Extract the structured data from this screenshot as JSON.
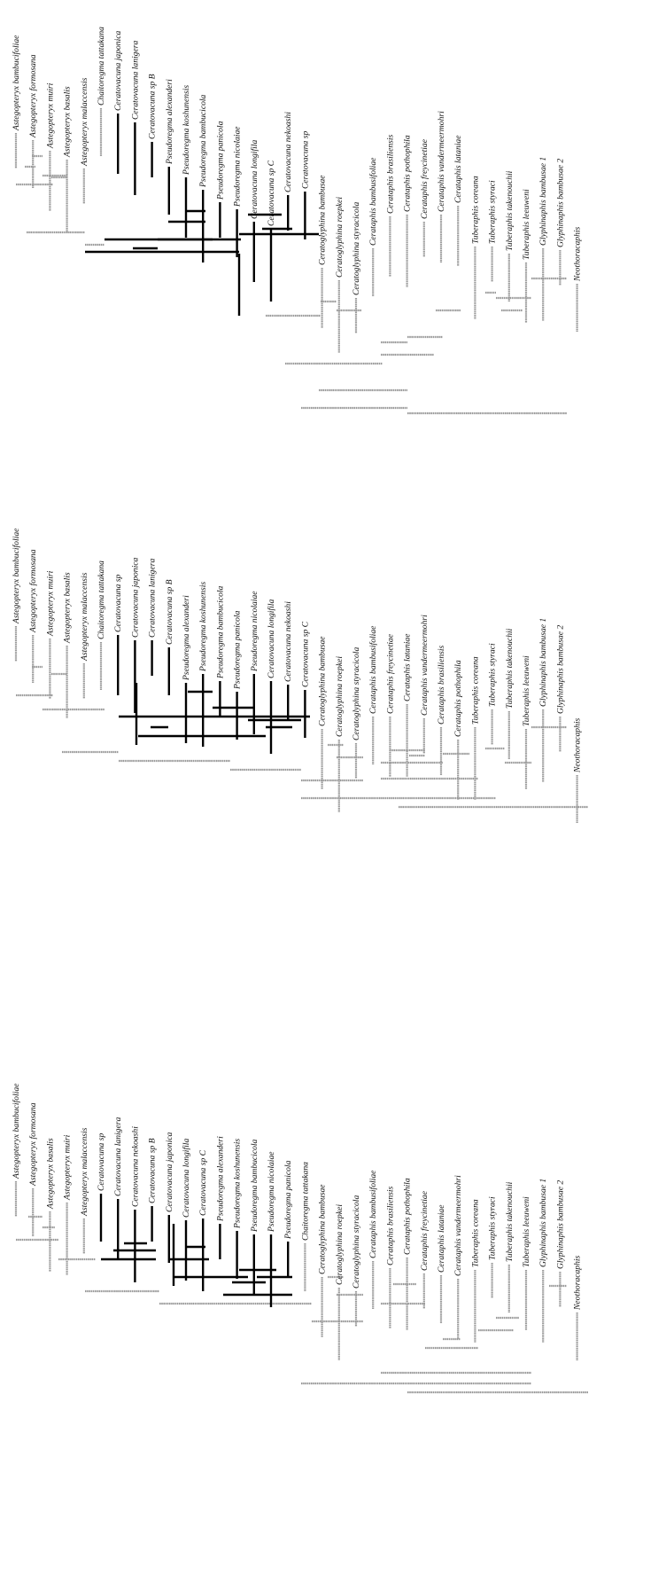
{
  "colors": {
    "background": "#ffffff",
    "outgroup_branch": "#9a9a9a",
    "cerataphidini_branch": "#000000",
    "label": "#111111"
  },
  "trees": [
    {
      "name": "tree-top",
      "taxa": [
        "Astegopteryx bambucifoliae",
        "Astegopteryx formosana",
        "Astegopteryx muiri",
        "Astegopteryx basalis",
        "Astegopteryx malaccensis",
        "Chaitoregma tattakana",
        "Ceratovacuna japonica",
        "Ceratovacuna lanigera",
        "Ceratovacuna sp B",
        "Pseudoregma alexanderi",
        "Pseudoregma koshunensis",
        "Pseudoregma bambucicola",
        "Pseudoregma panicola",
        "Pseudoregma nicolaiae",
        "Ceratovacuna longifila",
        "Ceratovacuna sp C",
        "Ceratovacuna nekoashi",
        "Ceratovacuna sp",
        "Ceratoglyphina bambusae",
        "Ceratoglyphina roepkei",
        "Ceratoglyphina styracicola",
        "Cerataphis bambusifoliae",
        "Cerataphis brasiliensis",
        "Cerataphis pothophila",
        "Cerataphis freycinetiae",
        "Cerataphis vandermeermohri",
        "Cerataphis lataniae",
        "Tuberaphis coreana",
        "Tuberaphis styraci",
        "Tuberaphis takenouchii",
        "Tuberaphis leeuweni",
        "Glyphinaphis bambusae 1",
        "Glyphinaphis bambusae 2",
        "Neothoracaphis"
      ]
    },
    {
      "name": "tree-middle",
      "taxa": [
        "Astegopteryx bambucifoliae",
        "Astegopteryx formosana",
        "Astegopteryx muiri",
        "Astegopteryx basalis",
        "Astegopteryx malaccensis",
        "Chaitoregma tattakana",
        "Ceratovacuna sp",
        "Ceratovacuna japonica",
        "Ceratovacuna lanigera",
        "Ceratovacuna sp B",
        "Pseudoregma alexanderi",
        "Pseudoregma koshunensis",
        "Pseudoregma bambucicola",
        "Pseudoregma panicola",
        "Pseudoregma nicolaiae",
        "Ceratovacuna longifila",
        "Ceratovacuna nekoashi",
        "Ceratovacuna sp C",
        "Ceratoglyphina bambusae",
        "Ceratoglyphina roepkei",
        "Ceratoglyphina styracicola",
        "Cerataphis bambusifoliae",
        "Cerataphis freycinetiae",
        "Cerataphis lataniae",
        "Cerataphis vandermeermohri",
        "Cerataphis brasiliensis",
        "Cerataphis pothophila",
        "Tuberaphis coreana",
        "Tuberaphis styraci",
        "Tuberaphis takenouchii",
        "Tuberaphis leeuweni",
        "Glyphinaphis bambusae 1",
        "Glyphinaphis bambusae 2",
        "Neothoracaphis"
      ]
    },
    {
      "name": "tree-bottom",
      "taxa": [
        "Astegopteryx bambucifoliae",
        "Astegopteryx formosana",
        "Astegopteryx basalis",
        "Astegopteryx muiri",
        "Astegopteryx malaccensis",
        "Ceratovacuna sp",
        "Ceratovacuna lanigera",
        "Ceratovacuna nekoashi",
        "Ceratovacuna sp B",
        "Ceratovacuna japonica",
        "Ceratovacuna longifila",
        "Ceratovacuna sp C",
        "Pseudoregma alexanderi",
        "Pseudoregma koshunensis",
        "Pseudoregma bambucicola",
        "Pseudoregma nicolaiae",
        "Pseudoregma panicola",
        "Chaitoregma tattakana",
        "Ceratoglyphina bambusae",
        "Ceratoglyphina roepkei",
        "Ceratoglyphina styracicola",
        "Cerataphis bambusifoliae",
        "Cerataphis brasiliensis",
        "Cerataphis pothophila",
        "Cerataphis freycinetiae",
        "Cerataphis lataniae",
        "Cerataphis vandermeermohri",
        "Tuberaphis coreana",
        "Tuberaphis styraci",
        "Tuberaphis takenouchii",
        "Tuberaphis leeuweni",
        "Glyphinaphis bambusae 1",
        "Glyphinaphis bambusae 2",
        "Neothoracaphis"
      ]
    }
  ]
}
